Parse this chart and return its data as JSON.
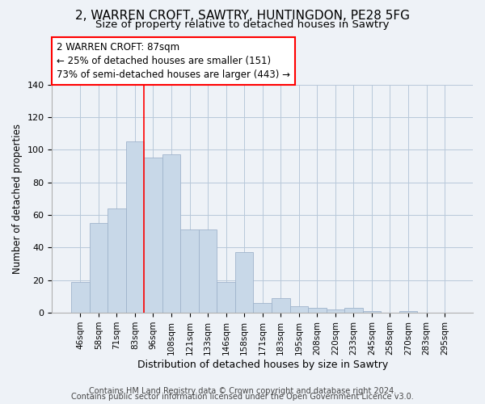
{
  "title1": "2, WARREN CROFT, SAWTRY, HUNTINGDON, PE28 5FG",
  "title2": "Size of property relative to detached houses in Sawtry",
  "xlabel": "Distribution of detached houses by size in Sawtry",
  "ylabel": "Number of detached properties",
  "bar_labels": [
    "46sqm",
    "58sqm",
    "71sqm",
    "83sqm",
    "96sqm",
    "108sqm",
    "121sqm",
    "133sqm",
    "146sqm",
    "158sqm",
    "171sqm",
    "183sqm",
    "195sqm",
    "208sqm",
    "220sqm",
    "233sqm",
    "245sqm",
    "258sqm",
    "270sqm",
    "283sqm",
    "295sqm"
  ],
  "bar_heights": [
    19,
    55,
    64,
    105,
    95,
    97,
    51,
    51,
    19,
    37,
    6,
    9,
    4,
    3,
    2,
    3,
    1,
    0,
    1,
    0,
    0
  ],
  "bar_color": "#c8d8e8",
  "bar_edge_color": "#a0b4cc",
  "red_line_index": 3,
  "ylim": [
    0,
    140
  ],
  "yticks": [
    0,
    20,
    40,
    60,
    80,
    100,
    120,
    140
  ],
  "annotation_title": "2 WARREN CROFT: 87sqm",
  "annotation_line1": "← 25% of detached houses are smaller (151)",
  "annotation_line2": "73% of semi-detached houses are larger (443) →",
  "footer1": "Contains HM Land Registry data © Crown copyright and database right 2024.",
  "footer2": "Contains public sector information licensed under the Open Government Licence v3.0.",
  "background_color": "#eef2f7",
  "plot_bg_color": "#eef2f7",
  "title_fontsize": 11,
  "subtitle_fontsize": 9.5,
  "ylabel_fontsize": 8.5,
  "xlabel_fontsize": 9,
  "tick_fontsize": 7.5,
  "footer_fontsize": 7
}
